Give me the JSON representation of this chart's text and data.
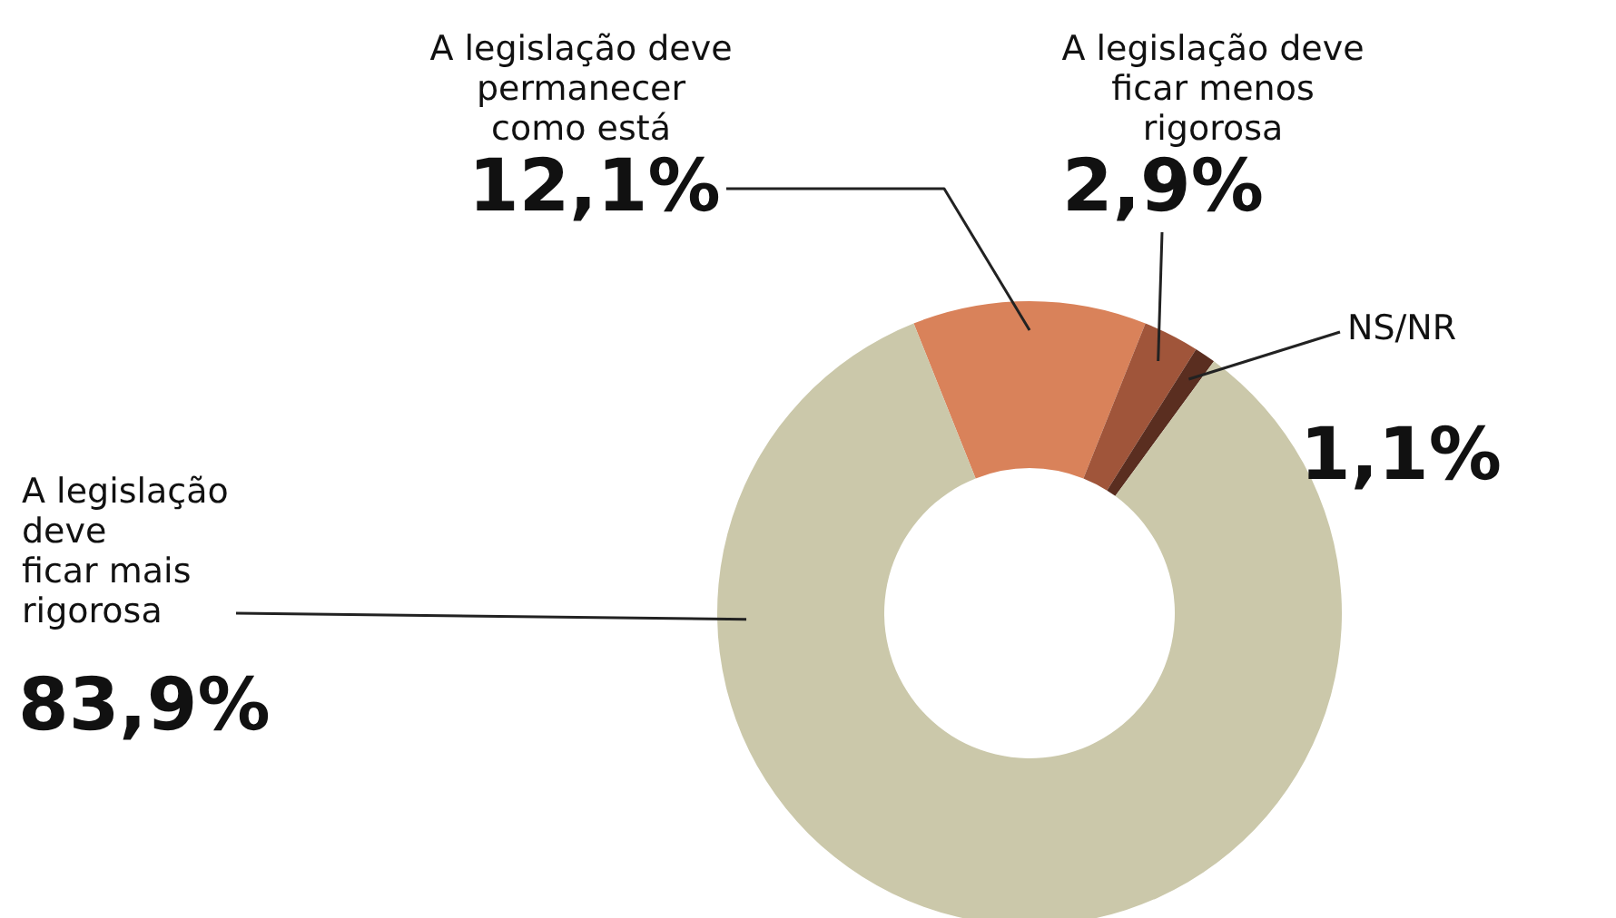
{
  "chart_data": {
    "type": "donut",
    "categories": [
      "A legislação deve permanecer como está",
      "A legislação deve ficar menos rigorosa",
      "NS/NR",
      "A legislação deve ficar mais rigorosa"
    ],
    "values": [
      12.1,
      2.9,
      1.1,
      83.9
    ],
    "value_labels": [
      "12,1%",
      "2,9%",
      "1,1%",
      "83,9%"
    ],
    "colors": [
      "#d9825a",
      "#a0553a",
      "#5a2e20",
      "#cbc8aa"
    ]
  }
}
